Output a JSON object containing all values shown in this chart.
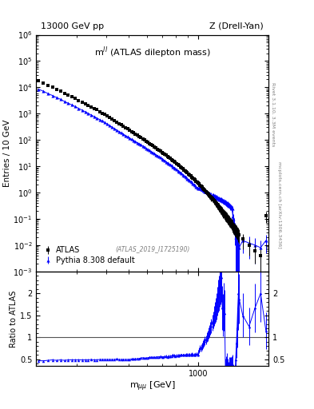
{
  "title_left": "13000 GeV pp",
  "title_right": "Z (Drell-Yan)",
  "inner_title": "mƳ (ATLAS dilepton mass)",
  "atlas_label": "ATLAS_2019_I1725190",
  "rivet_label": "Rivet 3.1.10, 3.3M events",
  "arxiv_label": "mcplots.cern.ch [arXiv:1306.3436]",
  "ylabel_main": "Entries / 10 GeV",
  "ylabel_ratio": "Ratio to ATLAS",
  "xlabel": "m_{mumu} [GeV]",
  "xlim": [
    200,
    2000
  ],
  "ylim_main_lo": 0.001,
  "ylim_main_hi": 1000000.0,
  "ylim_ratio_lo": 0.35,
  "ylim_ratio_hi": 2.5,
  "atlas_color": "#000000",
  "pythia_color": "#0000ff",
  "bg_color": "#ffffff",
  "atlas_x": [
    205,
    215,
    225,
    235,
    245,
    255,
    265,
    275,
    285,
    295,
    305,
    315,
    325,
    335,
    345,
    355,
    365,
    375,
    385,
    395,
    405,
    415,
    425,
    435,
    445,
    455,
    465,
    475,
    485,
    495,
    505,
    515,
    525,
    535,
    545,
    555,
    565,
    575,
    585,
    595,
    605,
    615,
    625,
    635,
    645,
    655,
    665,
    675,
    685,
    695,
    705,
    715,
    725,
    735,
    745,
    755,
    765,
    775,
    785,
    795,
    805,
    815,
    825,
    835,
    845,
    855,
    865,
    875,
    885,
    895,
    905,
    915,
    925,
    935,
    945,
    955,
    965,
    975,
    985,
    995,
    1005,
    1015,
    1025,
    1035,
    1045,
    1055,
    1065,
    1075,
    1085,
    1095,
    1105,
    1115,
    1125,
    1135,
    1145,
    1155,
    1165,
    1175,
    1185,
    1195,
    1205,
    1215,
    1225,
    1235,
    1245,
    1255,
    1265,
    1275,
    1285,
    1295,
    1305,
    1315,
    1325,
    1335,
    1345,
    1355,
    1365,
    1375,
    1385,
    1395,
    1405,
    1415,
    1425,
    1435,
    1445,
    1455,
    1465,
    1475,
    1485,
    1495,
    1550,
    1650,
    1750,
    1850,
    1950
  ],
  "atlas_y": [
    18000,
    15000,
    12000,
    10000,
    8500,
    7200,
    6000,
    5100,
    4400,
    3800,
    3200,
    2800,
    2400,
    2100,
    1800,
    1600,
    1400,
    1200,
    1050,
    920,
    800,
    700,
    610,
    540,
    470,
    420,
    370,
    330,
    295,
    265,
    235,
    210,
    190,
    170,
    152,
    137,
    123,
    110,
    100,
    90,
    82,
    73,
    66,
    60,
    55,
    50,
    45,
    41,
    37,
    34,
    31,
    28,
    26,
    24,
    22,
    20,
    18,
    16,
    15,
    14,
    12.5,
    11.5,
    10.5,
    9.5,
    8.7,
    8.0,
    7.3,
    6.7,
    6.1,
    5.6,
    5.1,
    4.7,
    4.3,
    3.9,
    3.6,
    3.3,
    3.0,
    2.7,
    2.5,
    2.3,
    2.1,
    1.9,
    1.75,
    1.6,
    1.45,
    1.32,
    1.2,
    1.1,
    1.0,
    0.92,
    0.84,
    0.77,
    0.7,
    0.64,
    0.59,
    0.54,
    0.49,
    0.45,
    0.41,
    0.38,
    0.34,
    0.31,
    0.29,
    0.26,
    0.24,
    0.22,
    0.2,
    0.18,
    0.17,
    0.155,
    0.14,
    0.13,
    0.12,
    0.108,
    0.098,
    0.09,
    0.082,
    0.075,
    0.068,
    0.062,
    0.057,
    0.052,
    0.048,
    0.044,
    0.04,
    0.036,
    0.033,
    0.03,
    0.028,
    0.025,
    0.017,
    0.01,
    0.006,
    0.004,
    0.13
  ],
  "atlas_yerr_lo": [
    200,
    170,
    145,
    120,
    105,
    90,
    80,
    70,
    63,
    56,
    48,
    43,
    38,
    34,
    30,
    27,
    25,
    22,
    20,
    18,
    16,
    14,
    13,
    12,
    11,
    10,
    9,
    8.5,
    8,
    7.5,
    7,
    6.5,
    6,
    5.5,
    5.2,
    4.8,
    4.5,
    4.2,
    3.9,
    3.7,
    3.4,
    3.2,
    3.0,
    2.8,
    2.6,
    2.5,
    2.3,
    2.2,
    2.0,
    1.9,
    1.8,
    1.7,
    1.6,
    1.5,
    1.4,
    1.3,
    1.25,
    1.2,
    1.1,
    1.05,
    1.0,
    0.95,
    0.9,
    0.85,
    0.8,
    0.76,
    0.72,
    0.68,
    0.64,
    0.61,
    0.58,
    0.55,
    0.52,
    0.49,
    0.47,
    0.44,
    0.42,
    0.4,
    0.38,
    0.36,
    0.34,
    0.32,
    0.3,
    0.29,
    0.27,
    0.26,
    0.24,
    0.23,
    0.22,
    0.21,
    0.2,
    0.19,
    0.18,
    0.17,
    0.16,
    0.15,
    0.14,
    0.13,
    0.12,
    0.12,
    0.11,
    0.1,
    0.1,
    0.09,
    0.088,
    0.082,
    0.076,
    0.071,
    0.066,
    0.062,
    0.057,
    0.053,
    0.05,
    0.046,
    0.042,
    0.039,
    0.036,
    0.033,
    0.031,
    0.029,
    0.027,
    0.025,
    0.023,
    0.022,
    0.02,
    0.019,
    0.017,
    0.016,
    0.015,
    0.014,
    0.01,
    0.006,
    0.004,
    0.003,
    0.06
  ],
  "pythia_x": [
    205,
    215,
    225,
    235,
    245,
    255,
    265,
    275,
    285,
    295,
    305,
    315,
    325,
    335,
    345,
    355,
    365,
    375,
    385,
    395,
    405,
    415,
    425,
    435,
    445,
    455,
    465,
    475,
    485,
    495,
    505,
    515,
    525,
    535,
    545,
    555,
    565,
    575,
    585,
    595,
    605,
    615,
    625,
    635,
    645,
    655,
    665,
    675,
    685,
    695,
    705,
    715,
    725,
    735,
    745,
    755,
    765,
    775,
    785,
    795,
    805,
    815,
    825,
    835,
    845,
    855,
    865,
    875,
    885,
    895,
    905,
    915,
    925,
    935,
    945,
    955,
    965,
    975,
    985,
    995,
    1005,
    1015,
    1025,
    1035,
    1045,
    1055,
    1065,
    1075,
    1085,
    1095,
    1105,
    1115,
    1125,
    1135,
    1145,
    1155,
    1165,
    1175,
    1185,
    1195,
    1205,
    1215,
    1225,
    1235,
    1245,
    1255,
    1265,
    1275,
    1285,
    1295,
    1305,
    1315,
    1325,
    1335,
    1345,
    1355,
    1365,
    1375,
    1385,
    1395,
    1405,
    1415,
    1425,
    1435,
    1445,
    1455,
    1465,
    1475,
    1485,
    1495,
    1550,
    1650,
    1750,
    1850,
    1950
  ],
  "pythia_y": [
    8500,
    7100,
    5800,
    4900,
    4100,
    3500,
    2900,
    2500,
    2150,
    1850,
    1580,
    1370,
    1180,
    1030,
    895,
    780,
    680,
    600,
    525,
    460,
    400,
    350,
    307,
    270,
    238,
    210,
    186,
    165,
    148,
    132,
    118,
    106,
    96,
    87,
    79,
    71,
    65,
    59,
    53,
    48,
    44,
    40,
    36,
    33,
    30,
    27.5,
    25,
    22.8,
    21,
    19.2,
    17.5,
    16,
    14.7,
    13.5,
    12.4,
    11.4,
    10.5,
    9.6,
    8.8,
    8.1,
    7.4,
    6.8,
    6.2,
    5.7,
    5.2,
    4.8,
    4.4,
    4.0,
    3.7,
    3.4,
    3.1,
    2.85,
    2.6,
    2.4,
    2.2,
    2.0,
    1.84,
    1.68,
    1.54,
    1.41,
    1.5,
    1.42,
    1.35,
    1.28,
    1.22,
    1.16,
    1.1,
    1.05,
    1.0,
    0.95,
    0.92,
    0.88,
    0.85,
    0.82,
    0.79,
    0.76,
    0.73,
    0.7,
    0.67,
    0.65,
    0.62,
    0.6,
    0.58,
    0.56,
    0.54,
    0.52,
    0.5,
    0.48,
    0.46,
    0.44,
    0.42,
    0.4,
    0.38,
    0.36,
    0.34,
    0.32,
    0.3,
    0.28,
    0.26,
    0.24,
    0.12,
    0.1,
    0.065,
    0.04,
    0.02,
    0.02,
    0.015,
    0.012,
    0.01,
    0.008,
    0.015,
    0.012,
    0.01,
    0.008,
    0.015
  ],
  "pythia_yerr_lo": [
    120,
    100,
    85,
    72,
    62,
    54,
    46,
    40,
    36,
    31,
    27,
    24,
    21,
    18,
    16,
    14.5,
    13,
    12,
    11,
    9.8,
    8.8,
    7.9,
    7.1,
    6.4,
    5.8,
    5.2,
    4.7,
    4.3,
    3.9,
    3.5,
    3.2,
    2.9,
    2.7,
    2.5,
    2.3,
    2.1,
    1.9,
    1.8,
    1.7,
    1.55,
    1.45,
    1.35,
    1.25,
    1.16,
    1.08,
    1.0,
    0.93,
    0.86,
    0.8,
    0.74,
    0.69,
    0.64,
    0.59,
    0.55,
    0.51,
    0.48,
    0.44,
    0.41,
    0.38,
    0.36,
    0.33,
    0.31,
    0.29,
    0.27,
    0.25,
    0.24,
    0.22,
    0.21,
    0.19,
    0.18,
    0.17,
    0.16,
    0.15,
    0.14,
    0.13,
    0.12,
    0.12,
    0.11,
    0.1,
    0.1,
    0.2,
    0.19,
    0.18,
    0.17,
    0.16,
    0.16,
    0.15,
    0.14,
    0.14,
    0.13,
    0.19,
    0.18,
    0.18,
    0.17,
    0.17,
    0.16,
    0.16,
    0.15,
    0.15,
    0.14,
    0.14,
    0.13,
    0.13,
    0.12,
    0.12,
    0.12,
    0.11,
    0.11,
    0.1,
    0.1,
    0.1,
    0.09,
    0.09,
    0.09,
    0.08,
    0.08,
    0.08,
    0.07,
    0.07,
    0.07,
    0.05,
    0.05,
    0.04,
    0.03,
    0.02,
    0.02,
    0.015,
    0.012,
    0.01,
    0.008,
    0.01,
    0.009,
    0.008,
    0.007,
    0.01
  ],
  "ratio_x": [
    205,
    215,
    225,
    235,
    245,
    255,
    265,
    275,
    285,
    295,
    305,
    315,
    325,
    335,
    345,
    355,
    365,
    375,
    385,
    395,
    405,
    415,
    425,
    435,
    445,
    455,
    465,
    475,
    485,
    495,
    505,
    515,
    525,
    535,
    545,
    555,
    565,
    575,
    585,
    595,
    605,
    615,
    625,
    635,
    645,
    655,
    665,
    675,
    685,
    695,
    705,
    715,
    725,
    735,
    745,
    755,
    765,
    775,
    785,
    795,
    805,
    815,
    825,
    835,
    845,
    855,
    865,
    875,
    885,
    895,
    905,
    915,
    925,
    935,
    945,
    955,
    965,
    975,
    985,
    995,
    1005,
    1015,
    1025,
    1035,
    1045,
    1055,
    1065,
    1075,
    1085,
    1095,
    1105,
    1115,
    1125,
    1135,
    1145,
    1155,
    1165,
    1175,
    1185,
    1195,
    1205,
    1215,
    1225,
    1235,
    1245,
    1255,
    1265,
    1275,
    1285,
    1295,
    1305,
    1315,
    1325,
    1335,
    1345,
    1355,
    1365,
    1375,
    1385,
    1395,
    1405,
    1415,
    1425,
    1435,
    1445,
    1455,
    1465,
    1475,
    1485,
    1495,
    1550,
    1650,
    1750,
    1850,
    1950
  ],
  "ratio_y": [
    0.47,
    0.47,
    0.48,
    0.49,
    0.48,
    0.49,
    0.48,
    0.49,
    0.49,
    0.49,
    0.49,
    0.49,
    0.49,
    0.49,
    0.5,
    0.49,
    0.49,
    0.5,
    0.5,
    0.5,
    0.5,
    0.5,
    0.5,
    0.5,
    0.51,
    0.5,
    0.5,
    0.5,
    0.5,
    0.5,
    0.5,
    0.51,
    0.51,
    0.51,
    0.52,
    0.52,
    0.53,
    0.54,
    0.53,
    0.53,
    0.54,
    0.55,
    0.55,
    0.55,
    0.55,
    0.55,
    0.56,
    0.56,
    0.57,
    0.56,
    0.56,
    0.57,
    0.57,
    0.56,
    0.57,
    0.57,
    0.58,
    0.6,
    0.59,
    0.58,
    0.59,
    0.59,
    0.59,
    0.6,
    0.6,
    0.6,
    0.6,
    0.6,
    0.61,
    0.61,
    0.61,
    0.61,
    0.61,
    0.62,
    0.61,
    0.61,
    0.61,
    0.62,
    0.62,
    0.61,
    0.71,
    0.75,
    0.77,
    0.8,
    0.84,
    0.88,
    0.92,
    0.95,
    1.0,
    1.04,
    1.1,
    1.14,
    1.21,
    1.26,
    1.34,
    1.4,
    1.49,
    1.56,
    1.63,
    1.71,
    1.82,
    1.94,
    2.0,
    2.15,
    2.25,
    2.36,
    1.67,
    1.5,
    1.7,
    1.55,
    0.33,
    0.38,
    0.43,
    0.34,
    0.29,
    0.36,
    0.37,
    0.36,
    0.38,
    0.39,
    0.21,
    0.19,
    0.14,
    0.13,
    0.5,
    0.88,
    1.2,
    1.67,
    2.0,
    1.88,
    1.5,
    1.25,
    1.67,
    2.0,
    1.15
  ],
  "ratio_yerr": [
    0.02,
    0.02,
    0.02,
    0.02,
    0.02,
    0.02,
    0.02,
    0.02,
    0.02,
    0.02,
    0.02,
    0.02,
    0.02,
    0.02,
    0.02,
    0.02,
    0.02,
    0.02,
    0.02,
    0.02,
    0.02,
    0.02,
    0.02,
    0.02,
    0.02,
    0.02,
    0.02,
    0.02,
    0.02,
    0.02,
    0.02,
    0.02,
    0.02,
    0.02,
    0.02,
    0.02,
    0.02,
    0.02,
    0.02,
    0.02,
    0.02,
    0.02,
    0.02,
    0.02,
    0.02,
    0.02,
    0.02,
    0.02,
    0.02,
    0.02,
    0.02,
    0.02,
    0.03,
    0.03,
    0.03,
    0.03,
    0.03,
    0.03,
    0.03,
    0.03,
    0.03,
    0.03,
    0.03,
    0.03,
    0.03,
    0.03,
    0.03,
    0.03,
    0.03,
    0.04,
    0.04,
    0.04,
    0.04,
    0.04,
    0.04,
    0.04,
    0.04,
    0.04,
    0.04,
    0.04,
    0.07,
    0.07,
    0.08,
    0.08,
    0.09,
    0.09,
    0.1,
    0.1,
    0.11,
    0.12,
    0.13,
    0.14,
    0.15,
    0.16,
    0.18,
    0.19,
    0.22,
    0.24,
    0.27,
    0.3,
    0.33,
    0.37,
    0.4,
    0.45,
    0.5,
    0.55,
    0.5,
    0.48,
    0.55,
    0.52,
    0.18,
    0.2,
    0.22,
    0.18,
    0.16,
    0.19,
    0.19,
    0.19,
    0.2,
    0.21,
    0.12,
    0.11,
    0.1,
    0.09,
    0.25,
    0.35,
    0.42,
    0.5,
    0.6,
    0.56,
    0.5,
    0.42,
    0.55,
    0.65,
    0.42
  ]
}
